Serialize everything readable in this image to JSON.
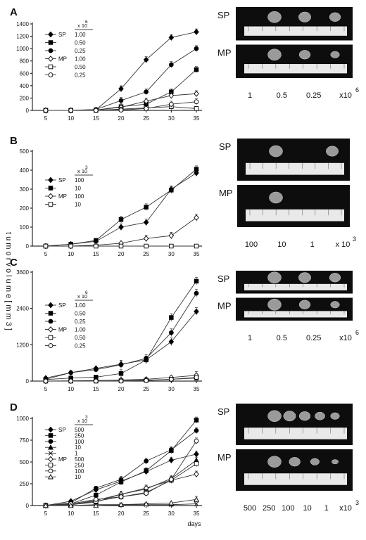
{
  "y_axis_label": "t u m o r   v o l u m e   [ m m 3 ]",
  "x_axis_label": "days",
  "chart_data": [
    {
      "panel": "A",
      "type": "line",
      "ylim": [
        0,
        1400
      ],
      "yticks": [
        0,
        200,
        400,
        600,
        800,
        1000,
        1200,
        1400
      ],
      "x": [
        5,
        10,
        15,
        20,
        25,
        30,
        35
      ],
      "xticks": [
        5,
        10,
        15,
        20,
        25,
        30,
        35
      ],
      "legend_multiplier": "x 10",
      "legend_exponent": "6",
      "series": [
        {
          "group": "SP",
          "dose": "1.00",
          "marker": "diamond-filled",
          "values": [
            0,
            0,
            10,
            350,
            820,
            1180,
            1270
          ]
        },
        {
          "group": "",
          "dose": "0.50",
          "marker": "square-filled",
          "values": [
            0,
            0,
            5,
            60,
            100,
            300,
            660
          ]
        },
        {
          "group": "",
          "dose": "0.25",
          "marker": "circle-filled",
          "values": [
            0,
            0,
            15,
            160,
            300,
            740,
            1000
          ]
        },
        {
          "group": "MP",
          "dose": "1.00",
          "marker": "diamond-open",
          "values": [
            0,
            0,
            5,
            50,
            150,
            240,
            270
          ]
        },
        {
          "group": "",
          "dose": "0.50",
          "marker": "square-open",
          "values": [
            0,
            0,
            0,
            20,
            40,
            60,
            30
          ]
        },
        {
          "group": "",
          "dose": "0.25",
          "marker": "circle-open",
          "values": [
            0,
            0,
            0,
            5,
            30,
            100,
            140
          ]
        }
      ],
      "photo": {
        "rows": [
          {
            "label": "SP",
            "lumps": 3
          },
          {
            "label": "MP",
            "lumps": 3
          }
        ],
        "captions": [
          "1",
          "0.5",
          "0.25",
          "x10"
        ],
        "caption_exponent": "6"
      }
    },
    {
      "panel": "B",
      "type": "line",
      "ylim": [
        0,
        500
      ],
      "yticks": [
        0,
        100,
        200,
        300,
        400,
        500
      ],
      "x": [
        5,
        10,
        15,
        20,
        25,
        30,
        35
      ],
      "xticks": [
        5,
        10,
        15,
        20,
        25,
        30,
        35
      ],
      "legend_multiplier": "x 10",
      "legend_exponent": "3",
      "series": [
        {
          "group": "SP",
          "dose": "100",
          "marker": "diamond-filled",
          "values": [
            0,
            10,
            25,
            100,
            125,
            300,
            385
          ]
        },
        {
          "group": "",
          "dose": "10",
          "marker": "square-filled",
          "values": [
            0,
            10,
            30,
            140,
            205,
            295,
            405
          ]
        },
        {
          "group": "MP",
          "dose": "100",
          "marker": "diamond-open",
          "values": [
            0,
            0,
            5,
            15,
            40,
            55,
            150
          ]
        },
        {
          "group": "",
          "dose": "10",
          "marker": "square-open",
          "values": [
            0,
            0,
            0,
            0,
            0,
            0,
            0
          ]
        }
      ],
      "photo": {
        "rows": [
          {
            "label": "SP",
            "lumps": 2
          },
          {
            "label": "MP",
            "lumps": 1
          }
        ],
        "captions": [
          "100",
          "10",
          "1",
          "x 10"
        ],
        "caption_exponent": "3"
      }
    },
    {
      "panel": "C",
      "type": "line",
      "ylim": [
        0,
        3600
      ],
      "yticks": [
        0,
        1200,
        2400,
        3600
      ],
      "x": [
        5,
        10,
        15,
        20,
        25,
        30,
        35
      ],
      "xticks": [
        5,
        10,
        15,
        20,
        25,
        30,
        35
      ],
      "legend_multiplier": "x 10",
      "legend_exponent": "6",
      "series": [
        {
          "group": "SP",
          "dose": "1.00",
          "marker": "diamond-filled",
          "values": [
            100,
            280,
            420,
            560,
            700,
            1300,
            2300
          ]
        },
        {
          "group": "",
          "dose": "0.50",
          "marker": "square-filled",
          "values": [
            50,
            100,
            130,
            250,
            700,
            2100,
            3300
          ]
        },
        {
          "group": "",
          "dose": "0.25",
          "marker": "circle-filled",
          "values": [
            60,
            280,
            380,
            540,
            750,
            1600,
            2900
          ]
        },
        {
          "group": "MP",
          "dose": "1.00",
          "marker": "diamond-open",
          "values": [
            0,
            10,
            20,
            40,
            60,
            120,
            190
          ]
        },
        {
          "group": "",
          "dose": "0.50",
          "marker": "square-open",
          "values": [
            0,
            0,
            0,
            10,
            30,
            60,
            100
          ]
        },
        {
          "group": "",
          "dose": "0.25",
          "marker": "circle-open",
          "values": [
            0,
            0,
            0,
            0,
            20,
            60,
            120
          ]
        }
      ],
      "photo": {
        "rows": [
          {
            "label": "SP",
            "lumps": 3
          },
          {
            "label": "MP",
            "lumps": 3
          }
        ],
        "captions": [
          "1",
          "0.5",
          "0.25",
          "x10"
        ],
        "caption_exponent": "6"
      }
    },
    {
      "panel": "D",
      "type": "line",
      "ylim": [
        0,
        1000
      ],
      "yticks": [
        0,
        250,
        500,
        750,
        1000
      ],
      "x": [
        5,
        10,
        15,
        20,
        25,
        30,
        35
      ],
      "xticks": [
        5,
        10,
        15,
        20,
        25,
        30,
        35
      ],
      "legend_multiplier": "x 10",
      "legend_exponent": "3",
      "series": [
        {
          "group": "SP",
          "dose": "500",
          "marker": "diamond-filled",
          "values": [
            0,
            50,
            180,
            280,
            390,
            520,
            590
          ]
        },
        {
          "group": "",
          "dose": "250",
          "marker": "square-filled",
          "values": [
            0,
            20,
            120,
            270,
            400,
            630,
            980
          ]
        },
        {
          "group": "",
          "dose": "100",
          "marker": "circle-filled",
          "values": [
            0,
            30,
            200,
            300,
            510,
            640,
            860
          ]
        },
        {
          "group": "",
          "dose": "10",
          "marker": "triangle-filled",
          "values": [
            0,
            10,
            40,
            130,
            190,
            310,
            520
          ]
        },
        {
          "group": "",
          "dose": "1",
          "marker": "cross",
          "values": [
            0,
            0,
            10,
            10,
            10,
            10,
            20
          ]
        },
        {
          "group": "MP",
          "dose": "500",
          "marker": "diamond-open",
          "values": [
            0,
            10,
            60,
            130,
            200,
            290,
            360
          ]
        },
        {
          "group": "",
          "dose": "250",
          "marker": "square-open",
          "values": [
            0,
            10,
            50,
            100,
            150,
            290,
            480
          ]
        },
        {
          "group": "",
          "dose": "100",
          "marker": "circle-open",
          "values": [
            0,
            20,
            70,
            100,
            140,
            300,
            740
          ]
        },
        {
          "group": "",
          "dose": "10",
          "marker": "triangle-open",
          "values": [
            0,
            0,
            0,
            10,
            20,
            30,
            70
          ]
        }
      ],
      "photo": {
        "rows": [
          {
            "label": "SP",
            "lumps": 5
          },
          {
            "label": "MP",
            "lumps": 4
          }
        ],
        "captions": [
          "500",
          "250",
          "100",
          "10",
          "1",
          "x10"
        ],
        "caption_exponent": "3"
      }
    }
  ]
}
